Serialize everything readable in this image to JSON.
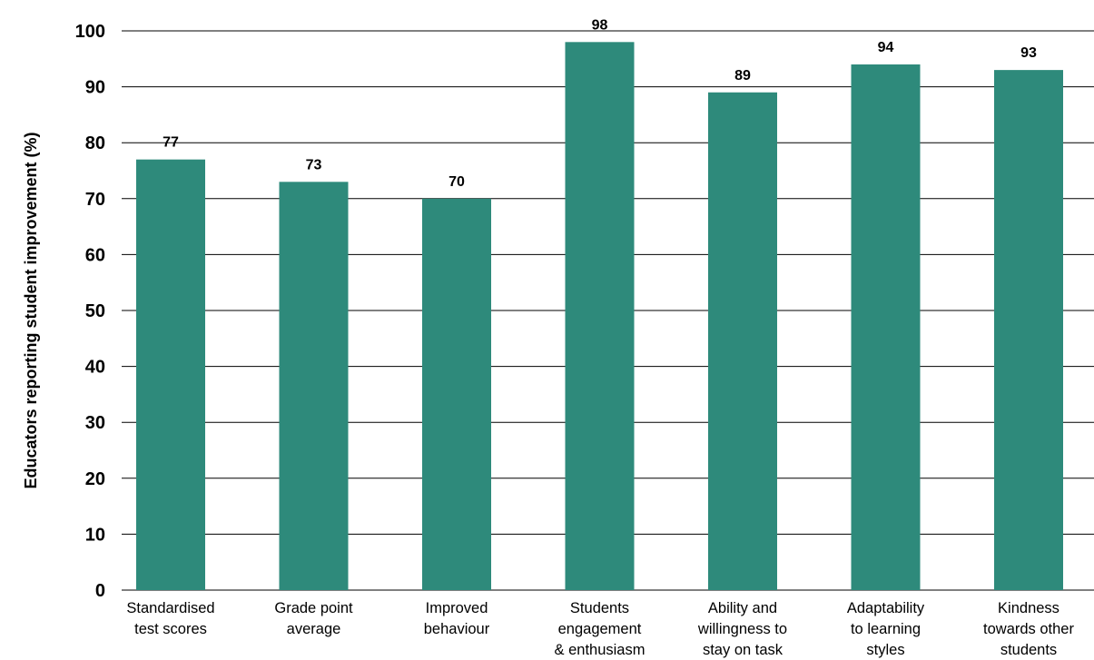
{
  "chart_data": {
    "type": "bar",
    "title": "",
    "xlabel": "",
    "ylabel": "Educators reporting student improvement (%)",
    "ylim": [
      0,
      100
    ],
    "yticks": [
      0,
      10,
      20,
      30,
      40,
      50,
      60,
      70,
      80,
      90,
      100
    ],
    "grid": true,
    "categories": [
      [
        "Standardised",
        "test scores"
      ],
      [
        "Grade point",
        "average"
      ],
      [
        "Improved",
        "behaviour"
      ],
      [
        "Students",
        "engagement",
        "& enthusiasm"
      ],
      [
        "Ability and",
        "willingness to",
        "stay on task"
      ],
      [
        "Adaptability",
        "to learning",
        "styles"
      ],
      [
        "Kindness",
        "towards other",
        "students"
      ]
    ],
    "values": [
      77,
      73,
      70,
      98,
      89,
      94,
      93
    ],
    "bar_color": "#2e8a7b"
  }
}
